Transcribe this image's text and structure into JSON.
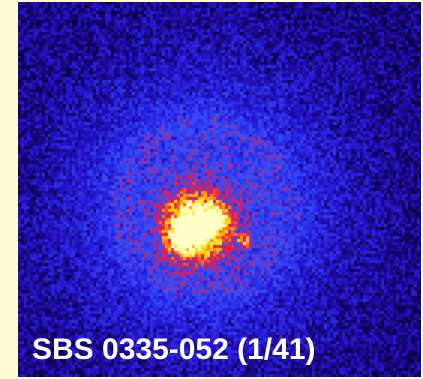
{
  "image": {
    "subject": "galaxy",
    "caption": "SBS 0335-052 (1/41)",
    "colors": {
      "page_background": "#fffbd6",
      "sky_background": "#1a0a6e",
      "halo": "#2a3cff",
      "core_hot": "#ffff66",
      "core_mid": "#ff3300",
      "caption_text": "#ffffff"
    }
  }
}
